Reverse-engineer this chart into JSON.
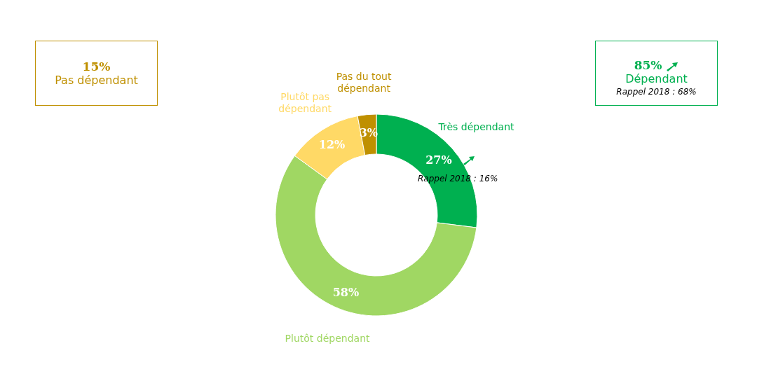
{
  "chart_data": {
    "type": "donut",
    "categories": [
      "Très dépendant",
      "Plutôt dépendant",
      "Plutôt pas dépendant",
      "Pas du tout dépendant"
    ],
    "values": [
      27,
      58,
      12,
      3
    ],
    "value_labels": [
      "27%",
      "58%",
      "12%",
      "3%"
    ],
    "colors": [
      "#00b050",
      "#a0d763",
      "#ffd966",
      "#bf9000"
    ],
    "legend": false,
    "annotations": [
      "15%",
      "Pas dépendant",
      "85%",
      "Dépendant",
      "Rappel 2018 : 68%",
      "Rappel 2018 : 16%"
    ]
  }
}
